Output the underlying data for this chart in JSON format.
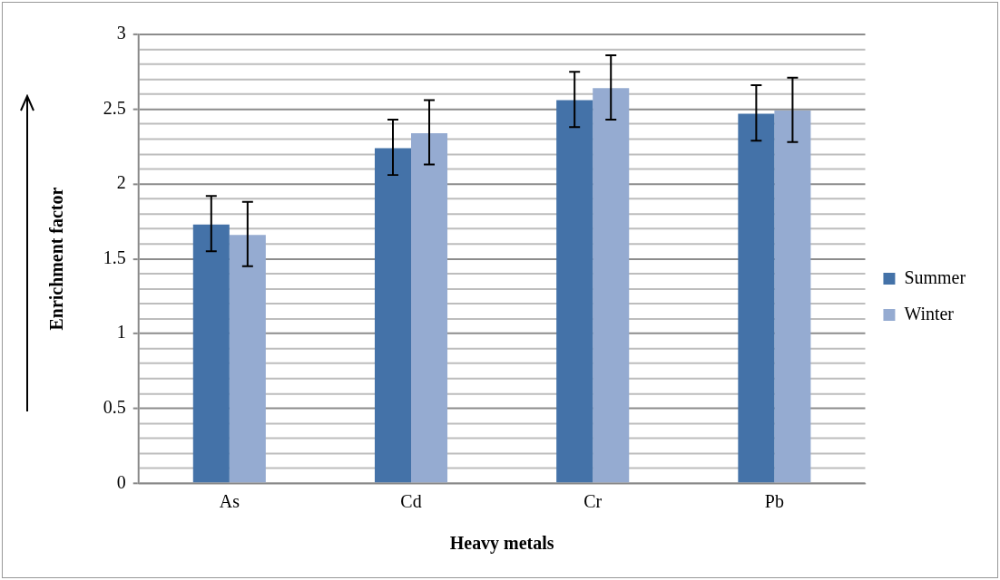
{
  "chart_data": {
    "type": "bar",
    "xlabel": "Heavy metals",
    "ylabel": "Enrichment factor",
    "categories": [
      "As",
      "Cd",
      "Cr",
      "Pb"
    ],
    "series": [
      {
        "name": "Summer",
        "color": "#4472a8",
        "values": [
          1.73,
          2.24,
          2.56,
          2.47
        ],
        "errors": [
          [
            1.55,
            1.92
          ],
          [
            2.06,
            2.43
          ],
          [
            2.38,
            2.75
          ],
          [
            2.29,
            2.66
          ]
        ]
      },
      {
        "name": "Winter",
        "color": "#95abd1",
        "values": [
          1.66,
          2.34,
          2.64,
          2.49
        ],
        "errors": [
          [
            1.45,
            1.88
          ],
          [
            2.13,
            2.56
          ],
          [
            2.43,
            2.86
          ],
          [
            2.28,
            2.71
          ]
        ]
      }
    ],
    "ylim": [
      0,
      3
    ],
    "yticks": [
      0,
      {
        "value": 0.1,
        "label": null
      },
      {
        "value": 0.2,
        "label": null
      },
      {
        "value": 0.3,
        "label": null
      },
      {
        "value": 0.4,
        "label": null
      },
      0.5,
      {
        "value": 0.6,
        "label": null
      },
      {
        "value": 0.7,
        "label": null
      },
      {
        "value": 0.8,
        "label": null
      },
      {
        "value": 0.9,
        "label": null
      },
      1,
      {
        "value": 1.1,
        "label": null
      },
      {
        "value": 1.2,
        "label": null
      },
      {
        "value": 1.3,
        "label": null
      },
      {
        "value": 1.4,
        "label": null
      },
      1.5,
      {
        "value": 1.6,
        "label": null
      },
      {
        "value": 1.7,
        "label": null
      },
      {
        "value": 1.8,
        "label": null
      },
      {
        "value": 1.9,
        "label": null
      },
      2,
      {
        "value": 2.1,
        "label": null
      },
      {
        "value": 2.2,
        "label": null
      },
      {
        "value": 2.3,
        "label": null
      },
      {
        "value": 2.4,
        "label": null
      },
      2.5,
      {
        "value": 2.6,
        "label": null
      },
      {
        "value": 2.7,
        "label": null
      },
      {
        "value": 2.8,
        "label": null
      },
      {
        "value": 2.9,
        "label": null
      },
      3
    ],
    "grid": "y",
    "legend": "right"
  }
}
